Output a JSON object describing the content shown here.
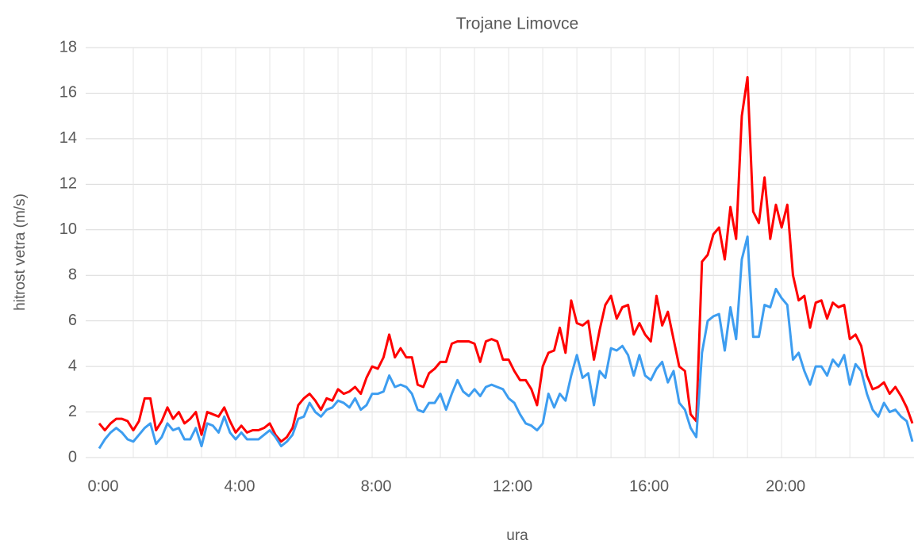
{
  "chart_data": {
    "type": "line",
    "title": "Trojane Limovce",
    "y_label": "hitrost vetra (m/s)",
    "x_label": "ura",
    "categories": [
      "0:00",
      null,
      null,
      null,
      null,
      null,
      null,
      null,
      null,
      null,
      null,
      null,
      null,
      null,
      null,
      null,
      null,
      null,
      null,
      null,
      null,
      null,
      null,
      null,
      "4:00",
      null,
      null,
      null,
      null,
      null,
      null,
      null,
      null,
      null,
      null,
      null,
      null,
      null,
      null,
      null,
      null,
      null,
      null,
      null,
      null,
      null,
      null,
      null,
      "8:00",
      null,
      null,
      null,
      null,
      null,
      null,
      null,
      null,
      null,
      null,
      null,
      null,
      null,
      null,
      null,
      null,
      null,
      null,
      null,
      null,
      null,
      null,
      null,
      "12:00",
      null,
      null,
      null,
      null,
      null,
      null,
      null,
      null,
      null,
      null,
      null,
      null,
      null,
      null,
      null,
      null,
      null,
      null,
      null,
      null,
      null,
      null,
      null,
      "16:00",
      null,
      null,
      null,
      null,
      null,
      null,
      null,
      null,
      null,
      null,
      null,
      null,
      null,
      null,
      null,
      null,
      null,
      null,
      null,
      null,
      null,
      null,
      null,
      "20:00",
      null,
      null,
      null,
      null,
      null,
      null,
      null,
      null,
      null,
      null,
      null,
      null,
      null,
      null,
      null,
      null,
      null,
      null,
      null,
      null,
      null,
      null,
      null
    ],
    "series": [
      {
        "color": "#ff0000",
        "values": [
          1.5,
          1.2,
          1.5,
          1.7,
          1.7,
          1.6,
          1.2,
          1.6,
          2.6,
          2.6,
          1.2,
          1.6,
          2.2,
          1.7,
          2.0,
          1.5,
          1.7,
          2.0,
          1.0,
          2.0,
          1.9,
          1.8,
          2.2,
          1.6,
          1.1,
          1.4,
          1.1,
          1.2,
          1.2,
          1.3,
          1.5,
          1.0,
          0.7,
          0.9,
          1.3,
          2.3,
          2.6,
          2.8,
          2.5,
          2.1,
          2.6,
          2.5,
          3.0,
          2.8,
          2.9,
          3.1,
          2.8,
          3.5,
          4.0,
          3.9,
          4.4,
          5.4,
          4.4,
          4.8,
          4.4,
          4.4,
          3.2,
          3.1,
          3.7,
          3.9,
          4.2,
          4.2,
          5.0,
          5.1,
          5.1,
          5.1,
          5.0,
          4.2,
          5.1,
          5.2,
          5.1,
          4.3,
          4.3,
          3.8,
          3.4,
          3.4,
          3.0,
          2.3,
          4.0,
          4.6,
          4.7,
          5.7,
          4.6,
          6.9,
          5.9,
          5.8,
          6.0,
          4.3,
          5.6,
          6.7,
          7.1,
          6.1,
          6.6,
          6.7,
          5.4,
          5.9,
          5.4,
          5.1,
          7.1,
          5.8,
          6.4,
          5.2,
          4.0,
          3.8,
          1.9,
          1.6,
          8.6,
          8.9,
          9.8,
          10.1,
          8.7,
          11.0,
          9.6,
          15.0,
          16.7,
          10.8,
          10.3,
          12.3,
          9.6,
          11.1,
          10.1,
          11.1,
          8.0,
          6.9,
          7.1,
          5.7,
          6.8,
          6.9,
          6.1,
          6.8,
          6.6,
          6.7,
          5.2,
          5.4,
          4.9,
          3.6,
          3.0,
          3.1,
          3.3,
          2.8,
          3.1,
          2.7,
          2.2,
          1.5
        ]
      },
      {
        "color": "#3d9df0",
        "values": [
          0.4,
          0.8,
          1.1,
          1.3,
          1.1,
          0.8,
          0.7,
          1.0,
          1.3,
          1.5,
          0.6,
          0.9,
          1.5,
          1.2,
          1.3,
          0.8,
          0.8,
          1.3,
          0.5,
          1.5,
          1.4,
          1.1,
          1.8,
          1.1,
          0.8,
          1.1,
          0.8,
          0.8,
          0.8,
          1.0,
          1.2,
          0.9,
          0.5,
          0.7,
          1.0,
          1.7,
          1.8,
          2.4,
          2.0,
          1.8,
          2.1,
          2.2,
          2.5,
          2.4,
          2.2,
          2.6,
          2.1,
          2.3,
          2.8,
          2.8,
          2.9,
          3.6,
          3.1,
          3.2,
          3.1,
          2.8,
          2.1,
          2.0,
          2.4,
          2.4,
          2.8,
          2.1,
          2.8,
          3.4,
          2.9,
          2.7,
          3.0,
          2.7,
          3.1,
          3.2,
          3.1,
          3.0,
          2.6,
          2.4,
          1.9,
          1.5,
          1.4,
          1.2,
          1.5,
          2.8,
          2.2,
          2.8,
          2.5,
          3.6,
          4.5,
          3.5,
          3.7,
          2.3,
          3.8,
          3.5,
          4.8,
          4.7,
          4.9,
          4.5,
          3.6,
          4.5,
          3.6,
          3.4,
          3.9,
          4.2,
          3.3,
          3.8,
          2.4,
          2.1,
          1.3,
          0.9,
          4.6,
          6.0,
          6.2,
          6.3,
          4.7,
          6.6,
          5.2,
          8.7,
          9.7,
          5.3,
          5.3,
          6.7,
          6.6,
          7.4,
          7.0,
          6.7,
          4.3,
          4.6,
          3.8,
          3.2,
          4.0,
          4.0,
          3.6,
          4.3,
          4.0,
          4.5,
          3.2,
          4.1,
          3.8,
          2.8,
          2.1,
          1.8,
          2.4,
          2.0,
          2.1,
          1.8,
          1.6,
          0.7
        ]
      }
    ],
    "ylim": [
      0,
      18
    ],
    "yticks": [
      0,
      2,
      4,
      6,
      8,
      10,
      12,
      14,
      16,
      18
    ],
    "grid": true
  }
}
